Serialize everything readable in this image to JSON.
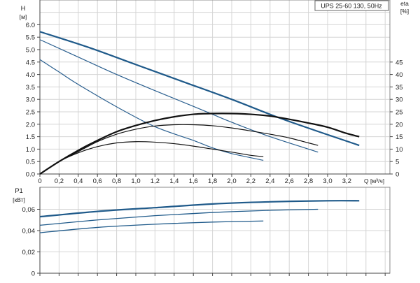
{
  "chart_data": [
    {
      "type": "line",
      "title": "UPS 25-60 130, 50Hz",
      "xlabel": "Q [м³/ч]",
      "ylabel": "H",
      "ylabel_unit": "[м]",
      "y2label": "eta",
      "y2label_unit": "[%]",
      "xlim": [
        0,
        3.6
      ],
      "ylim": [
        0,
        7
      ],
      "y2lim": [
        0,
        70
      ],
      "grid": true,
      "x_ticks": [
        "0",
        "0,2",
        "0,4",
        "0,6",
        "0,8",
        "1,0",
        "1,2",
        "1,4",
        "1,6",
        "1,8",
        "2,0",
        "2,2",
        "2,4",
        "2,6",
        "2,8",
        "3,0",
        "3,2"
      ],
      "x_tick_values": [
        0,
        0.2,
        0.4,
        0.6,
        0.8,
        1.0,
        1.2,
        1.4,
        1.6,
        1.8,
        2.0,
        2.2,
        2.4,
        2.6,
        2.8,
        3.0,
        3.2
      ],
      "y_ticks": [
        "0.0",
        "0.5",
        "1.0",
        "1.5",
        "2.0",
        "2.5",
        "3.0",
        "3.5",
        "4.0",
        "4.5",
        "5.0",
        "5.5",
        "6.0"
      ],
      "y_tick_values": [
        0,
        0.5,
        1,
        1.5,
        2,
        2.5,
        3,
        3.5,
        4,
        4.5,
        5,
        5.5,
        6
      ],
      "y2_ticks": [
        "0",
        "5",
        "10",
        "15",
        "20",
        "25",
        "30",
        "35",
        "40",
        "45"
      ],
      "y2_tick_values": [
        0,
        5,
        10,
        15,
        20,
        25,
        30,
        35,
        40,
        45
      ],
      "series": [
        {
          "kind": "H",
          "axis": "left",
          "color": "#1f5a8a",
          "width": 2.2,
          "points": [
            [
              0,
              5.72
            ],
            [
              0.5,
              5.1
            ],
            [
              1.0,
              4.4
            ],
            [
              1.5,
              3.7
            ],
            [
              2.0,
              3.0
            ],
            [
              2.5,
              2.25
            ],
            [
              3.0,
              1.58
            ],
            [
              3.33,
              1.15
            ]
          ]
        },
        {
          "kind": "H",
          "axis": "left",
          "color": "#2a5f8f",
          "width": 1.2,
          "points": [
            [
              0,
              5.4
            ],
            [
              0.4,
              4.7
            ],
            [
              0.8,
              4.0
            ],
            [
              1.2,
              3.35
            ],
            [
              1.6,
              2.72
            ],
            [
              1.8,
              2.4
            ],
            [
              2.0,
              2.08
            ],
            [
              2.4,
              1.5
            ],
            [
              2.9,
              0.88
            ]
          ]
        },
        {
          "kind": "H",
          "axis": "left",
          "color": "#2a5f8f",
          "width": 1.2,
          "points": [
            [
              0,
              4.6
            ],
            [
              0.2,
              4.1
            ],
            [
              0.4,
              3.6
            ],
            [
              0.8,
              2.7
            ],
            [
              1.2,
              1.9
            ],
            [
              1.6,
              1.35
            ],
            [
              1.8,
              1.05
            ],
            [
              2.0,
              0.82
            ],
            [
              2.33,
              0.55
            ]
          ]
        },
        {
          "kind": "eta",
          "axis": "right",
          "color": "#111111",
          "width": 2.2,
          "points": [
            [
              0,
              0
            ],
            [
              0.2,
              5
            ],
            [
              0.4,
              9.5
            ],
            [
              0.6,
              13.5
            ],
            [
              0.8,
              17
            ],
            [
              1.0,
              19.5
            ],
            [
              1.2,
              21.5
            ],
            [
              1.4,
              23
            ],
            [
              1.6,
              24
            ],
            [
              1.8,
              24.3
            ],
            [
              2.0,
              24.3
            ],
            [
              2.2,
              24
            ],
            [
              2.4,
              23.3
            ],
            [
              2.6,
              22
            ],
            [
              2.8,
              20.5
            ],
            [
              3.0,
              18.8
            ],
            [
              3.2,
              16.3
            ],
            [
              3.33,
              15
            ]
          ]
        },
        {
          "kind": "eta",
          "axis": "right",
          "color": "#111111",
          "width": 1.2,
          "points": [
            [
              0,
              0
            ],
            [
              0.2,
              5
            ],
            [
              0.4,
              9
            ],
            [
              0.6,
              13
            ],
            [
              0.8,
              16
            ],
            [
              1.0,
              18
            ],
            [
              1.2,
              19.3
            ],
            [
              1.4,
              19.8
            ],
            [
              1.6,
              19.8
            ],
            [
              1.8,
              19.4
            ],
            [
              2.0,
              18.5
            ],
            [
              2.2,
              17.3
            ],
            [
              2.4,
              16
            ],
            [
              2.6,
              14.5
            ],
            [
              2.8,
              12.5
            ],
            [
              2.9,
              11.5
            ]
          ]
        },
        {
          "kind": "eta",
          "axis": "right",
          "color": "#111111",
          "width": 1.2,
          "points": [
            [
              0,
              0
            ],
            [
              0.2,
              5
            ],
            [
              0.4,
              8.5
            ],
            [
              0.6,
              11
            ],
            [
              0.8,
              12.5
            ],
            [
              1.0,
              13
            ],
            [
              1.2,
              12.8
            ],
            [
              1.4,
              12.2
            ],
            [
              1.6,
              11.2
            ],
            [
              1.8,
              10
            ],
            [
              2.0,
              8.8
            ],
            [
              2.2,
              7.5
            ],
            [
              2.33,
              7
            ]
          ]
        }
      ]
    },
    {
      "type": "line",
      "ylabel": "P1",
      "ylabel_unit": "[кВт]",
      "xlim": [
        0,
        3.6
      ],
      "ylim": [
        0,
        0.08
      ],
      "grid": true,
      "y_ticks": [
        "0",
        "0,02",
        "0,04",
        "0,06"
      ],
      "y_tick_values": [
        0,
        0.02,
        0.04,
        0.06
      ],
      "series": [
        {
          "color": "#1f5a8a",
          "width": 2.2,
          "points": [
            [
              0,
              0.053
            ],
            [
              0.6,
              0.058
            ],
            [
              1.2,
              0.0615
            ],
            [
              1.8,
              0.065
            ],
            [
              2.4,
              0.067
            ],
            [
              3.0,
              0.068
            ],
            [
              3.33,
              0.068
            ]
          ]
        },
        {
          "color": "#1f5a8a",
          "width": 1.3,
          "points": [
            [
              0,
              0.045
            ],
            [
              0.6,
              0.05
            ],
            [
              1.2,
              0.054
            ],
            [
              1.8,
              0.057
            ],
            [
              2.4,
              0.059
            ],
            [
              2.9,
              0.06
            ]
          ]
        },
        {
          "color": "#1f5a8a",
          "width": 1.3,
          "points": [
            [
              0,
              0.038
            ],
            [
              0.6,
              0.043
            ],
            [
              1.2,
              0.046
            ],
            [
              1.8,
              0.048
            ],
            [
              2.33,
              0.049
            ]
          ]
        }
      ]
    }
  ]
}
